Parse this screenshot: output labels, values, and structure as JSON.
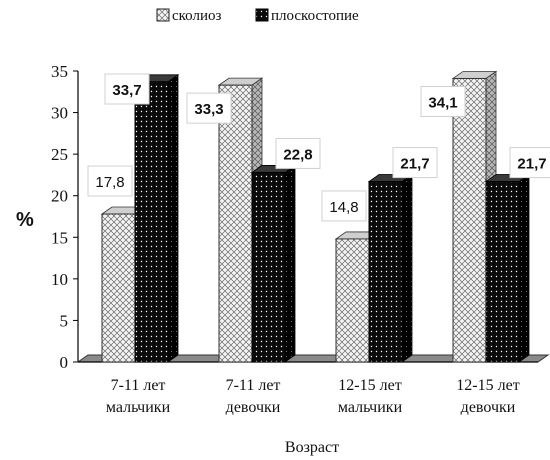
{
  "chart_data": {
    "type": "bar",
    "categories": [
      [
        "7-11 лет",
        "мальчики"
      ],
      [
        "7-11 лет",
        "девочки"
      ],
      [
        "12-15 лет",
        "мальчики"
      ],
      [
        "12-15 лет",
        "девочки"
      ]
    ],
    "series": [
      {
        "name": "сколиоз",
        "values": [
          17.8,
          33.3,
          14.8,
          34.1
        ],
        "value_labels": [
          "17,8",
          "33,3",
          "14,8",
          "34,1"
        ]
      },
      {
        "name": "плоскостопие",
        "values": [
          33.7,
          22.8,
          21.7,
          21.7
        ],
        "value_labels": [
          "33,7",
          "22,8",
          "21,7",
          "21,7"
        ]
      }
    ],
    "title": "",
    "xlabel": "Возраст",
    "ylabel": "%",
    "ylim": [
      0,
      35
    ],
    "yticks": [
      0,
      5,
      10,
      15,
      20,
      25,
      30,
      35
    ],
    "legend": "top",
    "grid": false,
    "style": "3d"
  },
  "colors": {
    "scoliosis_fill": "#f2f2f2",
    "flatfoot_fill": "#0b0b0b",
    "floor": "#8a8a8a"
  }
}
